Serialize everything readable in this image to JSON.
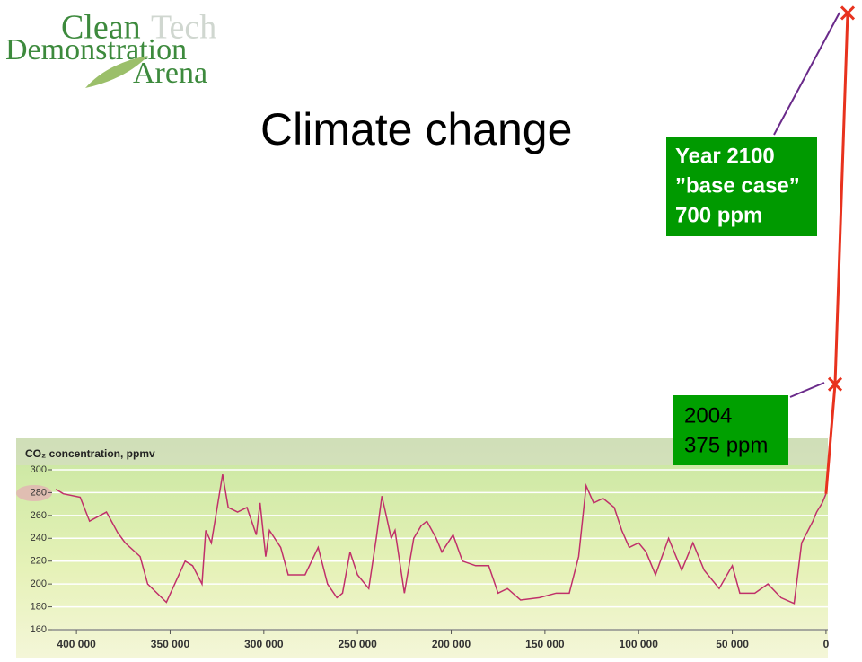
{
  "logo": {
    "line1": "Clean",
    "line1b": "Tech",
    "line2": "Demonstration",
    "line3": "Arena"
  },
  "title": "Climate change",
  "chart_data": {
    "type": "line",
    "y_label": "CO₂ concentration, ppmv",
    "xlim": [
      413000,
      -1000
    ],
    "ylim": [
      160,
      300
    ],
    "xticks": [
      {
        "value": 400000,
        "label": "400 000"
      },
      {
        "value": 350000,
        "label": "350 000"
      },
      {
        "value": 300000,
        "label": "300 000"
      },
      {
        "value": 250000,
        "label": "250 000"
      },
      {
        "value": 200000,
        "label": "200 000"
      },
      {
        "value": 150000,
        "label": "150 000"
      },
      {
        "value": 100000,
        "label": "100 000"
      },
      {
        "value": 50000,
        "label": "50 000"
      },
      0
    ],
    "yticks": [
      160,
      180,
      200,
      220,
      240,
      260,
      280,
      300
    ],
    "projection_color": "#e8321e",
    "series": [
      {
        "color": "#c0306a",
        "x": [
          411000,
          407000,
          398000,
          393000,
          384000,
          378000,
          374000,
          366000,
          362000,
          352000,
          342000,
          338000,
          333000,
          331000,
          328000,
          322000,
          319000,
          314000,
          309000,
          304000,
          302000,
          299000,
          297000,
          291000,
          287000,
          278000,
          271000,
          266000,
          261000,
          258000,
          254000,
          250000,
          244000,
          240000,
          237000,
          232000,
          230000,
          225000,
          220000,
          216000,
          213000,
          208000,
          205000,
          199000,
          194000,
          187000,
          180000,
          175000,
          170000,
          163000,
          153000,
          144000,
          137000,
          132000,
          128000,
          124000,
          119000,
          113000,
          109000,
          105000,
          100000,
          96000,
          91000,
          84000,
          77000,
          71000,
          65000,
          57000,
          50000,
          46000,
          38000,
          31000,
          24000,
          17000,
          13000,
          7000,
          5000,
          2000,
          0
        ],
        "values": [
          283,
          279,
          276,
          255,
          263,
          245,
          236,
          224,
          200,
          184,
          220,
          216,
          200,
          247,
          236,
          296,
          267,
          263,
          267,
          243,
          271,
          224,
          247,
          232,
          208,
          208,
          232,
          200,
          188,
          192,
          228,
          208,
          196,
          240,
          277,
          240,
          247,
          192,
          240,
          251,
          255,
          240,
          228,
          243,
          220,
          216,
          216,
          192,
          196,
          186,
          188,
          192,
          192,
          224,
          286,
          271,
          275,
          267,
          247,
          232,
          236,
          228,
          208,
          240,
          212,
          236,
          212,
          196,
          216,
          192,
          192,
          200,
          188,
          183,
          236,
          255,
          263,
          271,
          279
        ]
      }
    ],
    "annotations": [
      {
        "lines": [
          "Year 2100",
          "”base case”",
          "700 ppm"
        ],
        "value": 700
      },
      {
        "lines": [
          "2004",
          "375 ppm"
        ],
        "value": 375
      }
    ]
  }
}
